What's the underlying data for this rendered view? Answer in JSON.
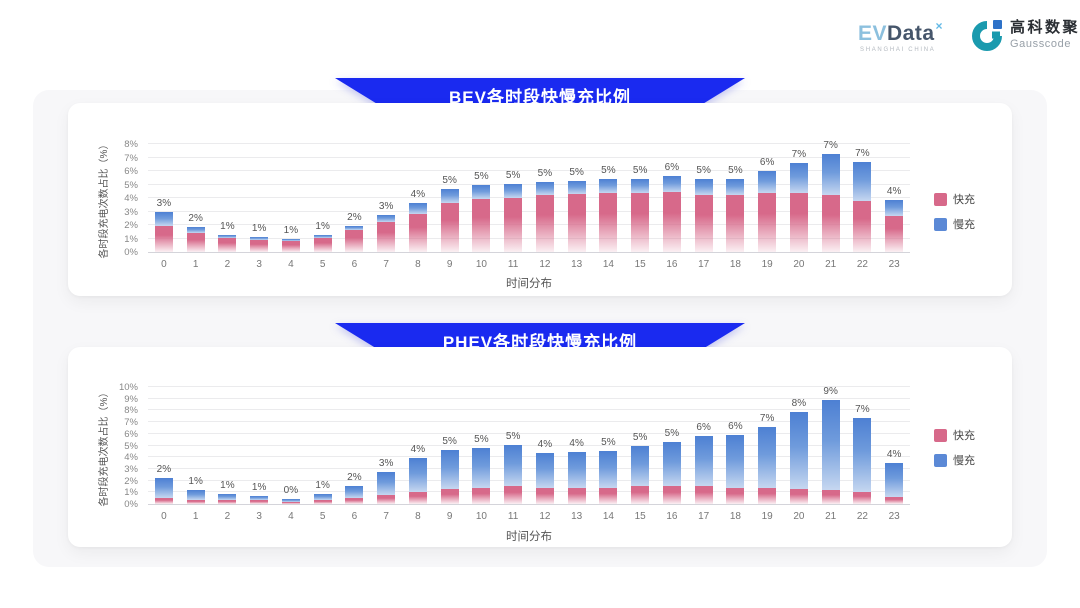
{
  "header": {
    "evdata": {
      "part1": "EV",
      "part2": "Data",
      "sup": "×",
      "tagline": "SHANGHAI CHINA"
    },
    "gausscode": {
      "name_cn": "高科数聚",
      "name_en": "Gausscode"
    }
  },
  "colors": {
    "banner_blue": "#1a2af0",
    "fast_pink": "#d7698a",
    "slow_blue": "#5b89d6"
  },
  "chart_data": [
    {
      "type": "bar",
      "stacked": true,
      "title": "BEV各时段快慢充比例",
      "xlabel": "时间分布",
      "ylabel": "各时段充电次数占比（%）",
      "ylim": [
        0,
        8
      ],
      "ytick_step": 1,
      "ytick_suffix": "%",
      "grid": true,
      "legend_position": "right-middle",
      "categories": [
        "0",
        "1",
        "2",
        "3",
        "4",
        "5",
        "6",
        "7",
        "8",
        "9",
        "10",
        "11",
        "12",
        "13",
        "14",
        "15",
        "16",
        "17",
        "18",
        "19",
        "20",
        "21",
        "22",
        "23"
      ],
      "series": [
        {
          "name": "快充",
          "color": "#d7698a",
          "values": [
            1.9,
            1.4,
            1.05,
            0.9,
            0.8,
            1.0,
            1.6,
            2.2,
            2.8,
            3.6,
            3.9,
            4.0,
            4.25,
            4.3,
            4.4,
            4.35,
            4.45,
            4.25,
            4.25,
            4.35,
            4.4,
            4.25,
            3.8,
            2.7
          ]
        },
        {
          "name": "慢充",
          "color": "#5b89d6",
          "values": [
            1.0,
            0.45,
            0.25,
            0.2,
            0.15,
            0.2,
            0.3,
            0.5,
            0.85,
            1.0,
            1.05,
            1.05,
            0.95,
            0.95,
            1.05,
            1.05,
            1.2,
            1.2,
            1.2,
            1.65,
            2.2,
            3.05,
            2.9,
            1.2
          ]
        }
      ],
      "total_labels": [
        "3%",
        "2%",
        "1%",
        "1%",
        "1%",
        "1%",
        "2%",
        "3%",
        "4%",
        "5%",
        "5%",
        "5%",
        "5%",
        "5%",
        "5%",
        "5%",
        "6%",
        "5%",
        "5%",
        "6%",
        "7%",
        "7%",
        "7%",
        "4%"
      ]
    },
    {
      "type": "bar",
      "stacked": true,
      "title": "PHEV各时段快慢充比例",
      "xlabel": "时间分布",
      "ylabel": "各时段充电次数占比（%）",
      "ylim": [
        0,
        10
      ],
      "ytick_step": 1,
      "ytick_suffix": "%",
      "grid": true,
      "legend_position": "right-middle",
      "categories": [
        "0",
        "1",
        "2",
        "3",
        "4",
        "5",
        "6",
        "7",
        "8",
        "9",
        "10",
        "11",
        "12",
        "13",
        "14",
        "15",
        "16",
        "17",
        "18",
        "19",
        "20",
        "21",
        "22",
        "23"
      ],
      "series": [
        {
          "name": "快充",
          "color": "#d7698a",
          "values": [
            0.5,
            0.35,
            0.3,
            0.3,
            0.2,
            0.35,
            0.55,
            0.8,
            1.0,
            1.3,
            1.4,
            1.5,
            1.4,
            1.4,
            1.4,
            1.5,
            1.5,
            1.5,
            1.4,
            1.35,
            1.3,
            1.2,
            1.0,
            0.6
          ]
        },
        {
          "name": "慢充",
          "color": "#5b89d6",
          "values": [
            1.75,
            0.85,
            0.5,
            0.35,
            0.25,
            0.5,
            1.0,
            2.0,
            2.9,
            3.3,
            3.4,
            3.5,
            3.0,
            3.05,
            3.2,
            3.4,
            3.8,
            4.3,
            4.5,
            5.25,
            6.6,
            7.7,
            6.3,
            2.9
          ]
        }
      ],
      "total_labels": [
        "2%",
        "1%",
        "1%",
        "1%",
        "0%",
        "1%",
        "2%",
        "3%",
        "4%",
        "5%",
        "5%",
        "5%",
        "4%",
        "4%",
        "5%",
        "5%",
        "5%",
        "6%",
        "6%",
        "7%",
        "8%",
        "9%",
        "7%",
        "4%"
      ]
    }
  ]
}
